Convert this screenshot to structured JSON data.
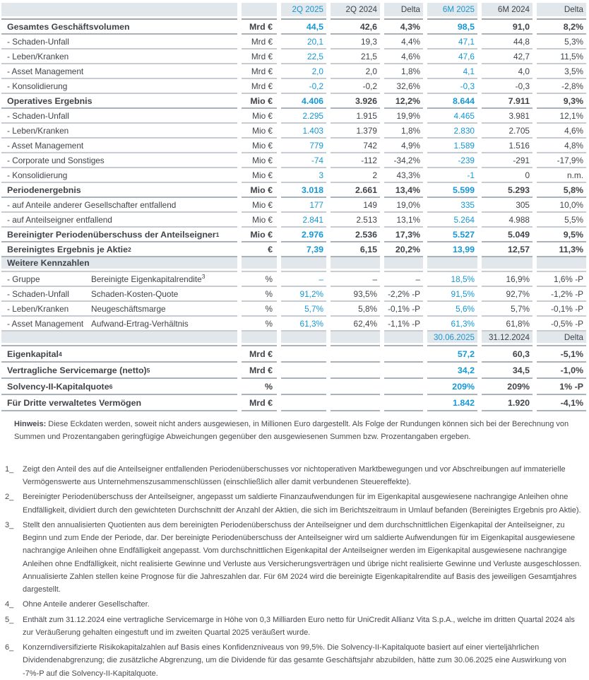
{
  "colors": {
    "accent_blue": "#1598d6",
    "text_dark": "#40444a",
    "header_cell_bg": "#e1e7ea",
    "row_line": "#c6ccd2",
    "strong_line": "#9ea8b0"
  },
  "table": {
    "period_header": {
      "cols": [
        "2Q 2025",
        "2Q 2024",
        "Delta",
        "6M 2025",
        "6M 2024",
        "Delta"
      ],
      "blue_flags": [
        true,
        false,
        false,
        true,
        false,
        false
      ]
    },
    "rows": [
      {
        "style": "bold",
        "label": "Gesamtes Geschäftsvolumen",
        "unit": "Mrd €",
        "values": [
          "44,5",
          "42,6",
          "4,3%",
          "98,5",
          "91,0",
          "8,2%"
        ]
      },
      {
        "style": "data",
        "label": "- Schaden-Unfall",
        "unit": "Mrd €",
        "values": [
          "20,1",
          "19,3",
          "4,4%",
          "47,1",
          "44,8",
          "5,3%"
        ]
      },
      {
        "style": "data",
        "label": "- Leben/Kranken",
        "unit": "Mrd €",
        "values": [
          "22,5",
          "21,5",
          "4,6%",
          "47,6",
          "42,7",
          "11,5%"
        ]
      },
      {
        "style": "data",
        "label": "- Asset Management",
        "unit": "Mrd €",
        "values": [
          "2,0",
          "2,0",
          "1,8%",
          "4,1",
          "4,0",
          "3,5%"
        ]
      },
      {
        "style": "data",
        "label": "- Konsolidierung",
        "unit": "Mrd €",
        "values": [
          "-0,2",
          "-0,2",
          "32,6%",
          "-0,3",
          "-0,3",
          "-2,8%"
        ]
      },
      {
        "style": "bold",
        "label": "Operatives Ergebnis",
        "unit": "Mio €",
        "values": [
          "4.406",
          "3.926",
          "12,2%",
          "8.644",
          "7.911",
          "9,3%"
        ]
      },
      {
        "style": "data",
        "label": "- Schaden-Unfall",
        "unit": "Mio €",
        "values": [
          "2.295",
          "1.915",
          "19,9%",
          "4.465",
          "3.981",
          "12,1%"
        ]
      },
      {
        "style": "data",
        "label": "- Leben/Kranken",
        "unit": "Mio €",
        "values": [
          "1.403",
          "1.379",
          "1,8%",
          "2.830",
          "2.705",
          "4,6%"
        ]
      },
      {
        "style": "data",
        "label": "- Asset Management",
        "unit": "Mio €",
        "values": [
          "779",
          "742",
          "4,9%",
          "1.589",
          "1.516",
          "4,8%"
        ]
      },
      {
        "style": "data",
        "label": "- Corporate und Sonstiges",
        "unit": "Mio €",
        "values": [
          "-74",
          "-112",
          "-34,2%",
          "-239",
          "-291",
          "-17,9%"
        ]
      },
      {
        "style": "data",
        "label": "- Konsolidierung",
        "unit": "Mio €",
        "values": [
          "3",
          "2",
          "43,3%",
          "-1",
          "0",
          "n.m."
        ]
      },
      {
        "style": "bold",
        "label": "Periodenergebnis",
        "unit": "Mio €",
        "values": [
          "3.018",
          "2.661",
          "13,4%",
          "5.599",
          "5.293",
          "5,8%"
        ]
      },
      {
        "style": "data",
        "label": "- auf Anteile anderer Gesellschafter entfallend",
        "unit": "Mio €",
        "values": [
          "177",
          "149",
          "19,0%",
          "335",
          "305",
          "10,0%"
        ]
      },
      {
        "style": "data",
        "label": "- auf Anteilseigner entfallend",
        "unit": "Mio €",
        "values": [
          "2.841",
          "2.513",
          "13,1%",
          "5.264",
          "4.988",
          "5,5%"
        ]
      },
      {
        "style": "bold",
        "label": "Bereinigter Periodenüberschuss der Anteilseigner",
        "sup": "1",
        "unit": "Mio €",
        "values": [
          "2.976",
          "2.536",
          "17,3%",
          "5.527",
          "5.049",
          "9,5%"
        ]
      },
      {
        "style": "bold",
        "label": "Bereinigtes Ergebnis je Aktie",
        "sup": "2",
        "unit": "€",
        "values": [
          "7,39",
          "6,15",
          "20,2%",
          "13,99",
          "12,57",
          "11,3%"
        ]
      },
      {
        "style": "section",
        "label": "Weitere Kennzahlen"
      },
      {
        "style": "data",
        "label": "- Gruppe",
        "metric": "Bereinigte Eigenkapitalrendite",
        "metric_sup": "3",
        "unit": "%",
        "values": [
          "–",
          "–",
          "–",
          "18,5%",
          "16,9%",
          "1,6% -P"
        ]
      },
      {
        "style": "data",
        "label": "- Schaden-Unfall",
        "metric": "Schaden-Kosten-Quote",
        "unit": "%",
        "values": [
          "91,2%",
          "93,5%",
          "-2,2% -P",
          "91,5%",
          "92,7%",
          "-1,2% -P"
        ]
      },
      {
        "style": "data",
        "label": "- Leben/Kranken",
        "metric": "Neugeschäftsmarge",
        "unit": "%",
        "values": [
          "5,7%",
          "5,8%",
          "-0,1% -P",
          "5,6%",
          "5,7%",
          "-0,1% -P"
        ]
      },
      {
        "style": "data",
        "label": "- Asset Management",
        "metric": "Aufwand-Ertrag-Verhältnis",
        "unit": "%",
        "values": [
          "61,3%",
          "62,4%",
          "-1,1% -P",
          "61,3%",
          "61,8%",
          "-0,5% -P"
        ]
      },
      {
        "style": "header2",
        "values": [
          "",
          "",
          "",
          "30.06.2025",
          "31.12.2024",
          "Delta"
        ],
        "blue_flags": [
          false,
          false,
          false,
          true,
          false,
          false
        ]
      },
      {
        "style": "bottom",
        "label": "Eigenkapital",
        "sup": "4",
        "unit": "Mrd €",
        "values": [
          "",
          "",
          "",
          "57,2",
          "60,3",
          "-5,1%"
        ]
      },
      {
        "style": "bottom",
        "label": "Vertragliche Servicemarge (netto)",
        "sup": "5",
        "unit": "Mrd €",
        "values": [
          "",
          "",
          "",
          "34,2",
          "34,5",
          "-1,0%"
        ]
      },
      {
        "style": "bottom",
        "label": "Solvency-II-Kapitalquote",
        "sup": "6",
        "unit": "%",
        "values": [
          "",
          "",
          "",
          "209%",
          "209%",
          "1% -P"
        ]
      },
      {
        "style": "bottom",
        "label": "Für Dritte verwaltetes Vermögen",
        "unit": "Mrd €",
        "values": [
          "",
          "",
          "",
          "1.842",
          "1.920",
          "-4,1%"
        ]
      }
    ]
  },
  "note": {
    "label": "Hinweis:",
    "text": "Diese Eckdaten werden, soweit nicht anders ausgewiesen, in Millionen Euro dargestellt. Als Folge der Rundungen können sich bei der Berechnung von Summen und Prozentangaben geringfügige Abweichungen gegenüber den ausgewiesenen Summen bzw. Prozentangaben ergeben."
  },
  "footnotes": [
    {
      "marker": "1_",
      "text": "Zeigt den Anteil des auf die Anteilseigner entfallenden Periodenüberschusses vor nichtoperativen Marktbewegungen und vor Abschreibungen auf immaterielle Vermögenswerte aus Unternehmenszusammenschlüssen (einschließlich aller damit verbundenen Steuereffekte)."
    },
    {
      "marker": "2_",
      "text": "Bereinigter Periodenüberschuss der Anteilseigner, angepasst um saldierte Finanzaufwendungen für im Eigenkapital ausgewiesene nachrangige Anleihen ohne Endfälligkeit, dividiert durch den gewichteten Durchschnitt der Anzahl der Aktien, die sich im Berichtszeitraum in Umlauf befanden (Bereinigtes Ergebnis pro Aktie)."
    },
    {
      "marker": "3_",
      "text": "Stellt den annualisierten Quotienten aus dem bereinigten Periodenüberschuss der Anteilseigner und dem durchschnittlichen Eigenkapital der Anteilseigner, zu Beginn und zum Ende der Periode, dar. Der bereinigte Periodenüberschuss der Anteilseigner wird um saldierte Aufwendungen für im Eigenkapital ausgewiesene nachrangige Anleihen ohne Endfälligkeit angepasst. Vom durchschnittlichen Eigenkapital der Anteilseigner werden im Eigenkapital ausgewiesene nachrangige Anleihen ohne Endfälligkeit, nicht realisierte Gewinne und Verluste aus Versicherungsverträgen und übrige nicht realisierte Gewinne und Verluste ausgeschlossen. Annualisierte Zahlen stellen keine Prognose für die Jahreszahlen dar. Für 6M 2024 wird die bereinigte Eigenkapitalrendite auf Basis des jeweiligen Gesamtjahres dargestellt."
    },
    {
      "marker": "4_",
      "text": "Ohne Anteile anderer Gesellschafter."
    },
    {
      "marker": "5_",
      "text": "Enthält zum 31.12.2024 eine vertragliche Servicemarge in Höhe von 0,3 Milliarden Euro netto für UniCredit Allianz Vita S.p.A., welche im dritten Quartal 2024 als zur Veräußerung gehalten eingestuft und im zweiten Quartal 2025 veräußert wurde."
    },
    {
      "marker": "6_",
      "text": "Konzerndiversifizierte Risikokapitalzahlen auf Basis eines Konfidenzniveaus von 99,5%. Die Solvency-II-Kapitalquote basiert auf einer vierteljährlichen Dividendenabgrenzung; die zusätzliche Abgrenzung, um die Dividende für das gesamte Geschäftsjahr abzubilden, hätte zum 30.06.2025 eine Auswirkung von -7%-P auf die Solvency-II-Kapitalquote."
    }
  ]
}
